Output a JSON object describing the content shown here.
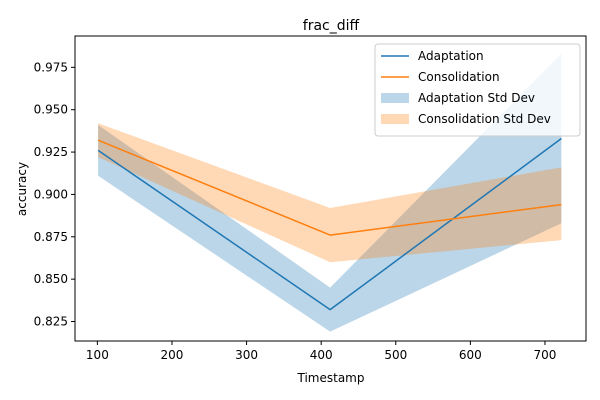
{
  "chart_data": {
    "type": "line",
    "title": "frac_diff",
    "xlabel": "Timestamp",
    "ylabel": "accuracy",
    "xlim": [
      70,
      755
    ],
    "ylim": [
      0.8135,
      0.9935
    ],
    "xticks": [
      100,
      200,
      300,
      400,
      500,
      600,
      700
    ],
    "yticks": [
      0.825,
      0.85,
      0.875,
      0.9,
      0.925,
      0.95,
      0.975
    ],
    "ytick_labels": [
      "0.825",
      "0.850",
      "0.875",
      "0.900",
      "0.925",
      "0.950",
      "0.975"
    ],
    "x": [
      101,
      412,
      722
    ],
    "grid": false,
    "legend_position": "top-right",
    "series": [
      {
        "name": "Adaptation",
        "color": "#1f77b4",
        "values": [
          0.926,
          0.832,
          0.933
        ],
        "std_band": {
          "name": "Adaptation Std Dev",
          "lower": [
            0.911,
            0.819,
            0.883
          ],
          "upper": [
            0.941,
            0.845,
            0.983
          ],
          "color": "#1f77b4",
          "opacity": 0.3
        }
      },
      {
        "name": "Consolidation",
        "color": "#ff7f0e",
        "values": [
          0.932,
          0.876,
          0.894
        ],
        "std_band": {
          "name": "Consolidation Std Dev",
          "lower": [
            0.922,
            0.86,
            0.873
          ],
          "upper": [
            0.942,
            0.892,
            0.916
          ],
          "color": "#ff7f0e",
          "opacity": 0.3
        }
      }
    ]
  }
}
